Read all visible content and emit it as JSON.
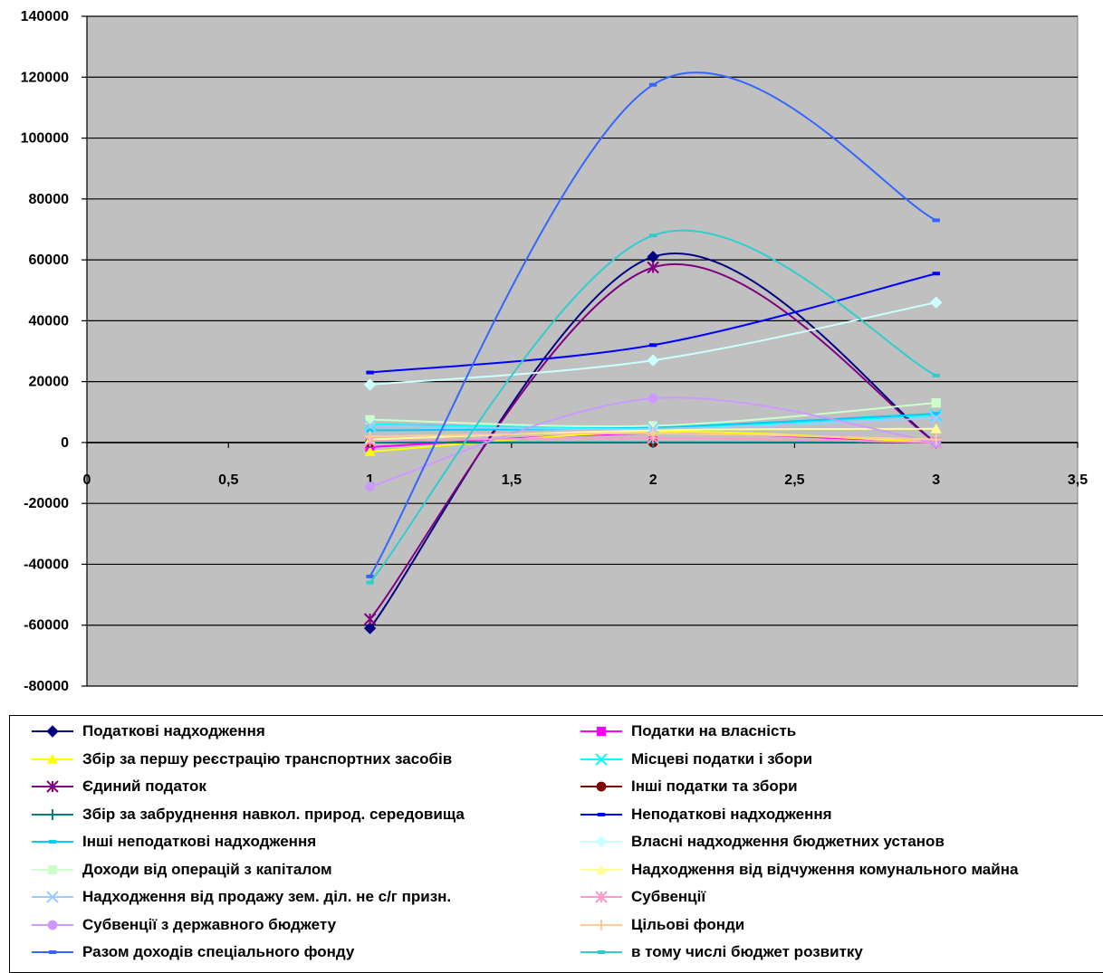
{
  "chart_data": {
    "type": "scatter",
    "title": "",
    "xlabel": "",
    "ylabel": "",
    "xlim": [
      0,
      3.5
    ],
    "ylim": [
      -80000,
      140000
    ],
    "x_ticks": [
      "0",
      "0,5",
      "1",
      "1,5",
      "2",
      "2,5",
      "3",
      "3,5"
    ],
    "y_ticks": [
      "140000",
      "120000",
      "100000",
      "80000",
      "60000",
      "40000",
      "20000",
      "0",
      "-20000",
      "-40000",
      "-60000",
      "-80000"
    ],
    "grid": true,
    "legend_position": "bottom",
    "colors": {
      "plot_background": "#C0C0C0",
      "gridline": "#000000"
    },
    "series": [
      {
        "name": "Податкові надходження",
        "color": "#000080",
        "marker": "diamond",
        "x": [
          1,
          2,
          3
        ],
        "y": [
          -61000,
          61000,
          0
        ]
      },
      {
        "name": "Податки на власність",
        "color": "#FF00FF",
        "marker": "square",
        "x": [
          1,
          2,
          3
        ],
        "y": [
          -1500,
          3000,
          0
        ]
      },
      {
        "name": "Збір за першу реєстрацію транспортних засобів",
        "color": "#FFFF00",
        "marker": "triangle",
        "x": [
          1,
          2,
          3
        ],
        "y": [
          -3000,
          3500,
          0
        ]
      },
      {
        "name": "Місцеві податки і збори",
        "color": "#00FFFF",
        "marker": "x",
        "x": [
          1,
          2,
          3
        ],
        "y": [
          6000,
          5000,
          9000
        ]
      },
      {
        "name": "Єдиний податок",
        "color": "#800080",
        "marker": "star",
        "x": [
          1,
          2,
          3
        ],
        "y": [
          -58000,
          57500,
          0
        ]
      },
      {
        "name": "Інші податки та збори",
        "color": "#800000",
        "marker": "circle",
        "x": [
          1,
          2,
          3
        ],
        "y": [
          0,
          0,
          0
        ]
      },
      {
        "name": "Збір за забруднення навкол. природ. середовища",
        "color": "#008080",
        "marker": "plus",
        "x": [
          1,
          2,
          3
        ],
        "y": [
          0,
          0,
          0
        ]
      },
      {
        "name": "Неподаткові надходження",
        "color": "#0000FF",
        "marker": "dash",
        "x": [
          1,
          2,
          3
        ],
        "y": [
          23000,
          32000,
          55500
        ]
      },
      {
        "name": "Інші неподаткові надходження",
        "color": "#00CCFF",
        "marker": "dash",
        "x": [
          1,
          2,
          3
        ],
        "y": [
          4000,
          5000,
          9500
        ]
      },
      {
        "name": "Власні надходження бюджетних установ",
        "color": "#CCFFFF",
        "marker": "diamond",
        "x": [
          1,
          2,
          3
        ],
        "y": [
          19000,
          27000,
          46000
        ]
      },
      {
        "name": "Доходи від операцій з капіталом",
        "color": "#CCFFCC",
        "marker": "square",
        "x": [
          1,
          2,
          3
        ],
        "y": [
          7500,
          5500,
          13000
        ]
      },
      {
        "name": "Надходження від відчуження комунального майна",
        "color": "#FFFF99",
        "marker": "triangle",
        "x": [
          1,
          2,
          3
        ],
        "y": [
          1000,
          4000,
          4500
        ]
      },
      {
        "name": "Надходження від продажу зем. діл. не с/г призн.",
        "color": "#99CCFF",
        "marker": "x",
        "x": [
          1,
          2,
          3
        ],
        "y": [
          5500,
          4500,
          8000
        ]
      },
      {
        "name": "Субвенції",
        "color": "#FF99CC",
        "marker": "star",
        "x": [
          1,
          2,
          3
        ],
        "y": [
          500,
          1500,
          0
        ]
      },
      {
        "name": "Субвенції з державного бюджету",
        "color": "#CC99FF",
        "marker": "circle",
        "x": [
          1,
          2,
          3
        ],
        "y": [
          -14500,
          14500,
          0
        ]
      },
      {
        "name": "Цільові фонди",
        "color": "#FFCC99",
        "marker": "plus",
        "x": [
          1,
          2,
          3
        ],
        "y": [
          2000,
          3000,
          1000
        ]
      },
      {
        "name": "Разом доходів спеціального фонду",
        "color": "#3366FF",
        "marker": "dash",
        "x": [
          1,
          2,
          3
        ],
        "y": [
          -44000,
          117500,
          73000
        ]
      },
      {
        "name": "в тому числі бюджет розвитку",
        "color": "#33CCCC",
        "marker": "dash",
        "x": [
          1,
          2,
          3
        ],
        "y": [
          -46000,
          68000,
          22000
        ]
      }
    ]
  }
}
